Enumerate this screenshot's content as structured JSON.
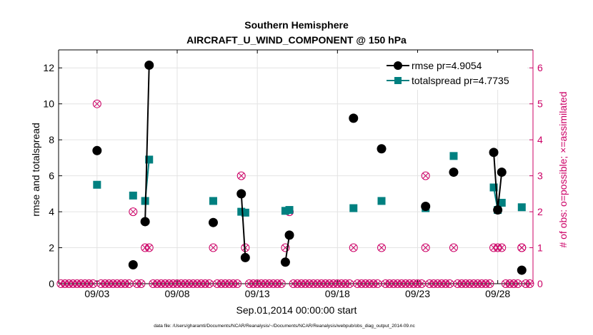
{
  "chart_data": {
    "type": "line",
    "title": "Southern Hemisphere",
    "subtitle": "AIRCRAFT_U_WIND_COMPONENT @ 150 hPa",
    "xlabel": "Sep.01,2014 00:00:00 start",
    "ylabel": "rmse and totalspread",
    "y2label": "# of obs: o=possible; ×=assimilated",
    "footer": "data file: /Users/gharamti/Documents/NCAR/Reanalysis/~/Documents/NCAR/Reanalysis/webpub/obs_diag_output_2014-09.nc",
    "xlim": [
      0.6,
      30.2
    ],
    "ylim": [
      0,
      13
    ],
    "y2lim": [
      0,
      6.5
    ],
    "x_ticks": [
      3.0,
      8.0,
      13.0,
      18.0,
      23.0,
      28.0
    ],
    "x_tick_labels": [
      "09/03",
      "09/08",
      "09/13",
      "09/18",
      "09/23",
      "09/28"
    ],
    "y_ticks": [
      0,
      2,
      4,
      6,
      8,
      10,
      12
    ],
    "y2_ticks": [
      0,
      1,
      2,
      3,
      4,
      5,
      6
    ],
    "grid": true,
    "legend_position": "top-right",
    "colors": {
      "rmse": "#000000",
      "spread": "#008080",
      "obs": "#cc0066",
      "axis2": "#cc0066"
    },
    "series": [
      {
        "name": "rmse pr=4.9054",
        "values": [
          [
            3.0,
            7.4
          ]
        ],
        "segments": [
          [
            [
              3.0,
              7.4
            ]
          ],
          [
            [
              5.25,
              1.05
            ]
          ],
          [
            [
              6.0,
              3.45
            ],
            [
              6.25,
              12.15
            ]
          ],
          [
            [
              10.25,
              3.4
            ]
          ],
          [
            [
              12.0,
              5.0
            ],
            [
              12.25,
              1.45
            ]
          ],
          [
            [
              14.75,
              1.2
            ],
            [
              15.0,
              2.7
            ]
          ],
          [
            [
              19.0,
              9.2
            ]
          ],
          [
            [
              20.75,
              7.5
            ]
          ],
          [
            [
              23.5,
              4.3
            ]
          ],
          [
            [
              25.25,
              6.2
            ]
          ],
          [
            [
              27.75,
              7.3
            ],
            [
              28.0,
              4.1
            ],
            [
              28.25,
              6.2
            ]
          ],
          [
            [
              29.5,
              0.75
            ]
          ]
        ]
      },
      {
        "name": "totalspread pr=4.7735",
        "segments": [
          [
            [
              3.0,
              5.5
            ]
          ],
          [
            [
              5.25,
              4.9
            ]
          ],
          [
            [
              6.0,
              4.6
            ],
            [
              6.25,
              6.9
            ]
          ],
          [
            [
              10.25,
              4.6
            ]
          ],
          [
            [
              12.0,
              4.0
            ],
            [
              12.25,
              3.95
            ]
          ],
          [
            [
              14.75,
              4.05
            ],
            [
              15.0,
              4.1
            ]
          ],
          [
            [
              19.0,
              4.2
            ]
          ],
          [
            [
              20.75,
              4.6
            ]
          ],
          [
            [
              23.5,
              4.2
            ]
          ],
          [
            [
              25.25,
              7.1
            ]
          ],
          [
            [
              27.75,
              5.35
            ],
            [
              28.0,
              4.1
            ],
            [
              28.25,
              4.5
            ]
          ],
          [
            [
              29.5,
              4.25
            ]
          ]
        ]
      }
    ],
    "obs_possible_counts": [
      5,
      2,
      1,
      1,
      1,
      3,
      1,
      1,
      2,
      1,
      1,
      1,
      3,
      1,
      1,
      1,
      1,
      1,
      1
    ],
    "obs_possible_x": [
      3.0,
      5.25,
      6.0,
      6.25,
      10.25,
      12.0,
      12.25,
      14.75,
      15.0,
      19.0,
      20.75,
      23.5,
      23.5,
      25.25,
      27.75,
      28.0,
      28.25,
      29.5,
      29.5
    ],
    "obs_zero_x_step": 0.25
  }
}
